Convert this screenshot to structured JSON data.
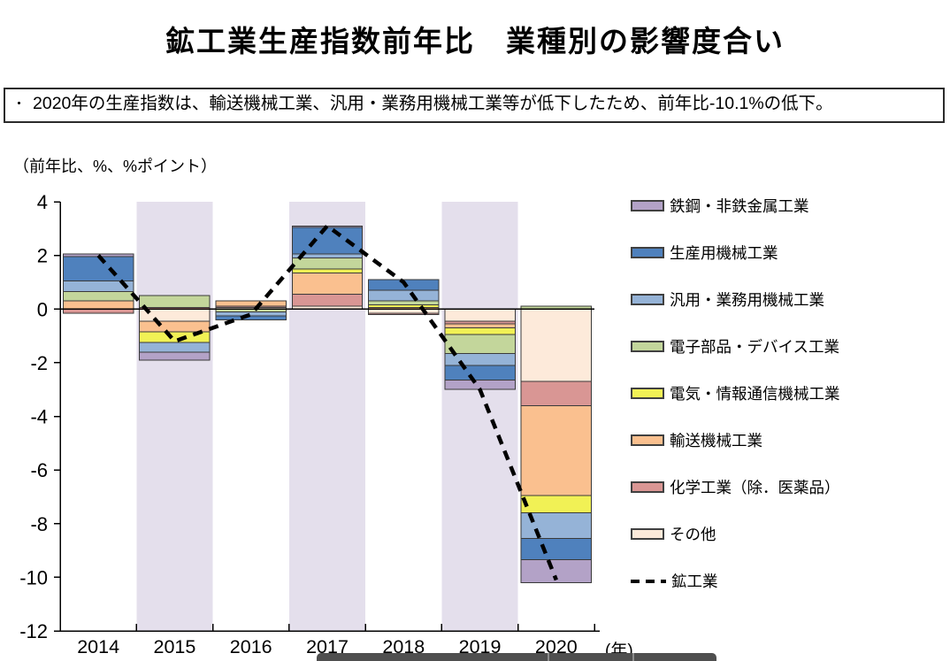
{
  "title": "鉱工業生産指数前年比　業種別の影響度合い",
  "note": {
    "bullet": "・",
    "text": "2020年の生産指数は、輸送機械工業、汎用・業務用機械工業等が低下したため、前年比-10.1%の低下。"
  },
  "unit_label": "（前年比、%、%ポイント）",
  "x_axis_unit": "(年)",
  "chart_data": {
    "type": "bar",
    "stacked": true,
    "title": "鉱工業生産指数前年比　業種別の影響度合い",
    "xlabel": "年",
    "ylabel": "前年比、%、%ポイント",
    "ylim": [
      -12,
      4
    ],
    "ytick_step": 2,
    "grid": false,
    "legend_position": "right",
    "categories": [
      "2014",
      "2015",
      "2016",
      "2017",
      "2018",
      "2019",
      "2020"
    ],
    "shaded_categories": [
      "2015",
      "2017",
      "2019"
    ],
    "band_color": "#e4dfec",
    "series": [
      {
        "name": "鉄鋼・非鉄金属工業",
        "color": "#b3a2c7",
        "values": [
          0.1,
          -0.3,
          0,
          0.05,
          0,
          -0.35,
          -0.85
        ]
      },
      {
        "name": "生産用機械工業",
        "color": "#4f81bd",
        "values": [
          0.9,
          0,
          -0.15,
          1.0,
          0.4,
          -0.55,
          -0.8
        ]
      },
      {
        "name": "汎用・業務用機械工業",
        "color": "#95b3d7",
        "values": [
          0.4,
          -0.35,
          -0.15,
          0.15,
          0.4,
          -0.45,
          -0.95
        ]
      },
      {
        "name": "電子部品・デバイス工業",
        "color": "#c3d69b",
        "values": [
          0.35,
          0.45,
          -0.1,
          0.4,
          0.15,
          -0.7,
          0.1
        ]
      },
      {
        "name": "電気・情報通信機械工業",
        "color": "#f1f155",
        "values": [
          0,
          -0.4,
          0,
          0.15,
          0.1,
          -0.25,
          -0.65
        ]
      },
      {
        "name": "輸送機械工業",
        "color": "#fac08f",
        "values": [
          0.3,
          -0.4,
          0.2,
          0.8,
          0.05,
          -0.15,
          -3.35
        ]
      },
      {
        "name": "化学工業（除．医薬品）",
        "color": "#d99694",
        "values": [
          -0.15,
          0.05,
          0.05,
          0.45,
          -0.05,
          -0.1,
          -0.9
        ]
      },
      {
        "name": "その他",
        "color": "#fdeada",
        "values": [
          0,
          -0.45,
          0.05,
          0.1,
          -0.15,
          -0.45,
          -2.7
        ]
      }
    ],
    "line_series": {
      "name": "鉱工業",
      "style": "dashed",
      "color": "#000000",
      "values": [
        2.0,
        -1.2,
        -0.2,
        3.1,
        1.0,
        -3.0,
        -10.1
      ]
    }
  }
}
